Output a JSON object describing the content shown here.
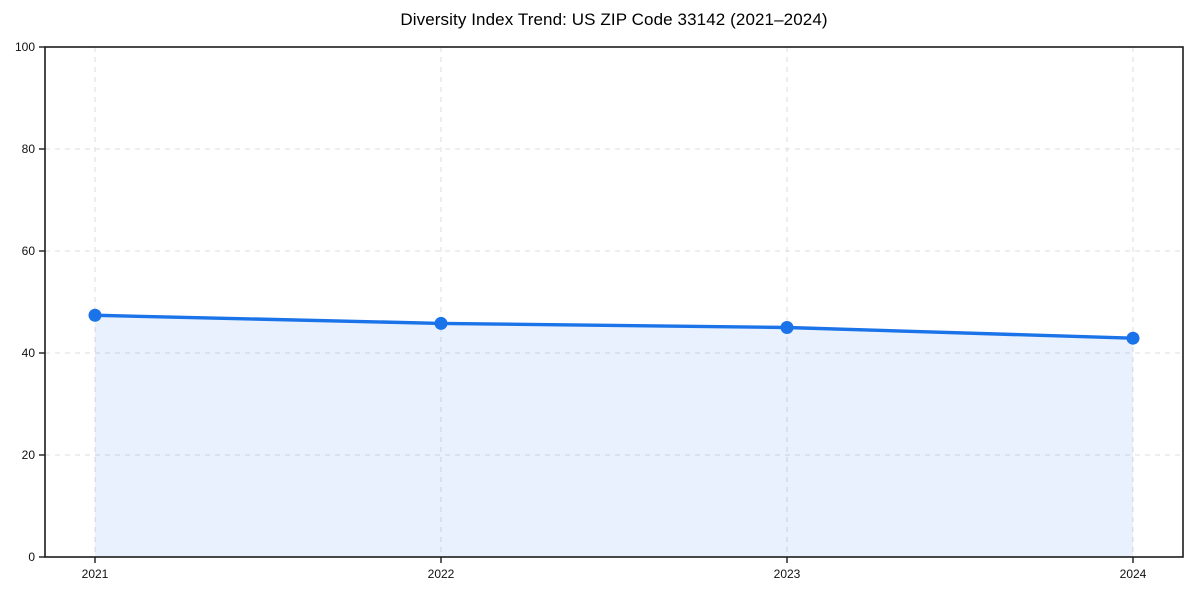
{
  "page": {
    "background_color": "#ffffff"
  },
  "chart_data": {
    "type": "line",
    "title": "Diversity Index Trend: US ZIP Code 33142 (2021–2024)",
    "xlabel": "",
    "ylabel": "",
    "categories": [
      "2021",
      "2022",
      "2023",
      "2024"
    ],
    "series": [
      {
        "name": "Diversity Index",
        "values": [
          47.4,
          45.8,
          45.0,
          42.9
        ]
      }
    ],
    "ylim": [
      0,
      100
    ],
    "yticks": [
      0,
      20,
      40,
      60,
      80,
      100
    ],
    "grid": "dashed both axes",
    "legend_position": "none",
    "area_fill": true,
    "marker": "circle",
    "styles": {
      "line_color": "#1a73e8",
      "marker_color": "#1a73e8",
      "area_fill_color": "rgba(26,115,232,0.10)",
      "grid_color": "#dcdcdc",
      "spine_color": "#1c1c1c",
      "tick_text_color": "#111111",
      "title_color": "#000000"
    }
  }
}
